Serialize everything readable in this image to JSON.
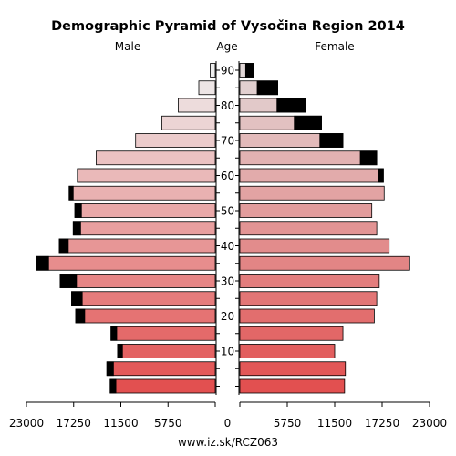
{
  "chart_data": {
    "type": "bar",
    "subtype": "population-pyramid",
    "title": "Demographic Pyramid of Vysočina Region 2014",
    "left_label": "Male",
    "center_label": "Age",
    "right_label": "Female",
    "source": "www.iz.sk/RCZ063",
    "age_ticks": [
      "90",
      "80",
      "70",
      "60",
      "50",
      "40",
      "30",
      "20",
      "10"
    ],
    "x_ticks": [
      "23000",
      "17250",
      "11500",
      "5750",
      "0",
      "5750",
      "11500",
      "17250",
      "23000"
    ],
    "xlim": [
      0,
      23000
    ],
    "age_groups": [
      "0-4",
      "5-9",
      "10-14",
      "15-19",
      "20-24",
      "25-29",
      "30-34",
      "35-39",
      "40-44",
      "45-49",
      "50-54",
      "55-59",
      "60-64",
      "65-69",
      "70-74",
      "75-79",
      "80-84",
      "85-89",
      "90+"
    ],
    "series": [
      {
        "name": "Male",
        "total": [
          12800,
          13200,
          11900,
          12700,
          17000,
          17500,
          18900,
          21800,
          19000,
          17300,
          17100,
          17800,
          16800,
          14500,
          9700,
          6500,
          4500,
          2000,
          600
        ],
        "excess": [
          700,
          800,
          600,
          700,
          1100,
          1300,
          2000,
          1500,
          1100,
          900,
          800,
          500,
          0,
          0,
          0,
          0,
          0,
          0,
          0
        ]
      },
      {
        "name": "Female",
        "total": [
          12700,
          12800,
          11500,
          12500,
          16300,
          16600,
          16900,
          20600,
          18100,
          16600,
          16000,
          17500,
          17400,
          16600,
          12500,
          9900,
          8000,
          4600,
          1700
        ],
        "excess": [
          0,
          0,
          0,
          0,
          0,
          0,
          0,
          0,
          0,
          0,
          0,
          0,
          600,
          2000,
          2800,
          3300,
          3500,
          2500,
          1000
        ]
      }
    ],
    "legend": "none",
    "grid": false
  }
}
